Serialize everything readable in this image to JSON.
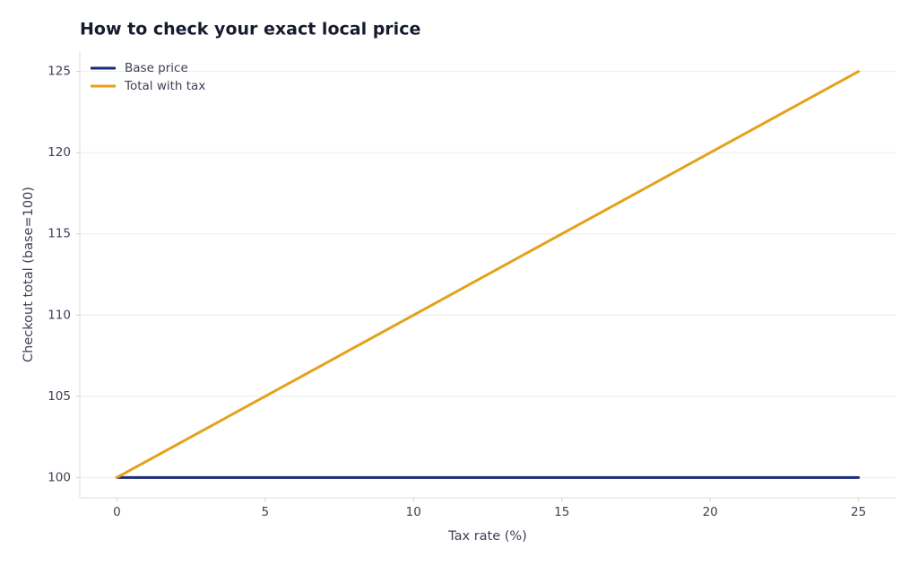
{
  "chart_data": {
    "type": "line",
    "title": "How to check your exact local price",
    "x_label": "Tax rate (%)",
    "y_label": "Checkout total (base=100)",
    "x": [
      0,
      5,
      10,
      15,
      20,
      25
    ],
    "series": [
      {
        "name": "Base price",
        "color": "#1a2a7a",
        "values": [
          100,
          100,
          100,
          100,
          100,
          100
        ]
      },
      {
        "name": "Total with tax",
        "color": "#e3a21a",
        "values": [
          100,
          105,
          110,
          115,
          120,
          125
        ]
      }
    ],
    "xlim": [
      -1.25,
      26.25
    ],
    "xticks": [
      0,
      5,
      10,
      15,
      20,
      25
    ],
    "ylim": [
      98.75,
      126.25
    ],
    "yticks": [
      100,
      105,
      110,
      115,
      120,
      125
    ],
    "grid": true,
    "legend": "upper left"
  }
}
